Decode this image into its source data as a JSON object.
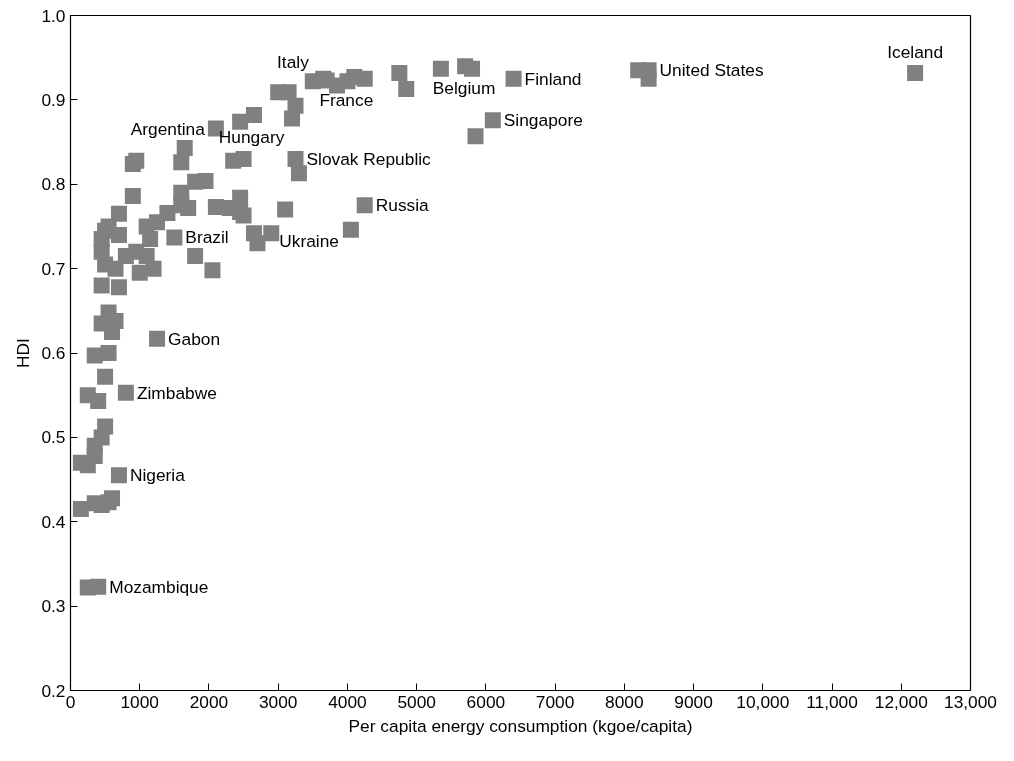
{
  "chart_data": {
    "type": "scatter",
    "xlabel": "Per capita energy consumption (kgoe/capita)",
    "ylabel": "HDI",
    "marker": "square",
    "grid": false,
    "xlim": [
      0,
      13000
    ],
    "ylim": [
      0.2,
      1.0
    ],
    "xticks": [
      0,
      1000,
      2000,
      3000,
      4000,
      5000,
      6000,
      7000,
      8000,
      9000,
      {
        "value": 10000,
        "label": "10,000"
      },
      {
        "value": 11000,
        "label": "11,000"
      },
      {
        "value": 12000,
        "label": "12,000"
      },
      {
        "value": 13000,
        "label": "13,000"
      }
    ],
    "yticks": [
      0.2,
      0.3,
      0.4,
      0.5,
      0.6,
      0.7,
      0.8,
      0.9,
      {
        "value": 1.0,
        "label": "1.0"
      }
    ],
    "series": [
      {
        "color": "#808080",
        "x": [
          6100,
          5850,
          12200,
          8200,
          8350,
          8350,
          6400,
          5350,
          5700,
          5800,
          4750,
          4850,
          3500,
          3650,
          3700,
          3850,
          4000,
          4100,
          4250,
          3000,
          3150,
          3200,
          3250,
          2450,
          2650,
          2100,
          2350,
          2500,
          3250,
          3300,
          1600,
          1650,
          900,
          950,
          1800,
          1950,
          900,
          1600,
          1600,
          1700,
          2100,
          2300,
          2450,
          2450,
          2500,
          3100,
          4250,
          4050,
          2650,
          2700,
          2900,
          1500,
          1250,
          1150,
          1400,
          1100,
          700,
          500,
          550,
          450,
          450,
          700,
          650,
          500,
          800,
          950,
          1000,
          1100,
          1200,
          450,
          700,
          1800,
          2050,
          450,
          550,
          650,
          600,
          550,
          1250,
          350,
          500,
          250,
          400,
          800,
          500,
          450,
          350,
          350,
          150,
          250,
          700,
          150,
          350,
          450,
          550,
          600,
          250,
          400
        ],
        "values": [
          0.876,
          0.857,
          0.932,
          0.935,
          0.935,
          0.925,
          0.925,
          0.937,
          0.94,
          0.937,
          0.932,
          0.913,
          0.922,
          0.925,
          0.923,
          0.917,
          0.922,
          0.927,
          0.925,
          0.909,
          0.909,
          0.878,
          0.893,
          0.874,
          0.882,
          0.866,
          0.828,
          0.83,
          0.83,
          0.813,
          0.826,
          0.843,
          0.824,
          0.828,
          0.803,
          0.804,
          0.786,
          0.79,
          0.775,
          0.772,
          0.773,
          0.772,
          0.784,
          0.767,
          0.763,
          0.77,
          0.775,
          0.746,
          0.742,
          0.73,
          0.742,
          0.737,
          0.755,
          0.735,
          0.766,
          0.75,
          0.765,
          0.745,
          0.75,
          0.735,
          0.72,
          0.74,
          0.7,
          0.705,
          0.715,
          0.72,
          0.695,
          0.715,
          0.7,
          0.68,
          0.678,
          0.715,
          0.698,
          0.635,
          0.648,
          0.638,
          0.625,
          0.6,
          0.617,
          0.597,
          0.572,
          0.55,
          0.543,
          0.553,
          0.513,
          0.5,
          0.49,
          0.478,
          0.47,
          0.467,
          0.455,
          0.415,
          0.422,
          0.42,
          0.423,
          0.428,
          0.322,
          0.323
        ]
      }
    ],
    "annotations": [
      {
        "text": "Iceland",
        "x": 12200,
        "y": 0.932
      },
      {
        "text": "United States",
        "x": 8350,
        "y": 0.935
      },
      {
        "text": "Finland",
        "x": 6400,
        "y": 0.925
      },
      {
        "text": "Belgium",
        "x": 5800,
        "y": 0.937
      },
      {
        "text": "Singapore",
        "x": 6100,
        "y": 0.876
      },
      {
        "text": "France",
        "x": 4100,
        "y": 0.922
      },
      {
        "text": "Italy",
        "x": 3500,
        "y": 0.922
      },
      {
        "text": "Argentina",
        "x": 2100,
        "y": 0.866
      },
      {
        "text": "Hungary",
        "x": 2500,
        "y": 0.83
      },
      {
        "text": "Slovak Republic",
        "x": 3250,
        "y": 0.83
      },
      {
        "text": "Russia",
        "x": 4250,
        "y": 0.775
      },
      {
        "text": "Brazil",
        "x": 1500,
        "y": 0.737
      },
      {
        "text": "Ukraine",
        "x": 2900,
        "y": 0.742
      },
      {
        "text": "Gabon",
        "x": 1250,
        "y": 0.617
      },
      {
        "text": "Zimbabwe",
        "x": 800,
        "y": 0.553
      },
      {
        "text": "Nigeria",
        "x": 700,
        "y": 0.455
      },
      {
        "text": "Mozambique",
        "x": 400,
        "y": 0.323
      }
    ]
  }
}
